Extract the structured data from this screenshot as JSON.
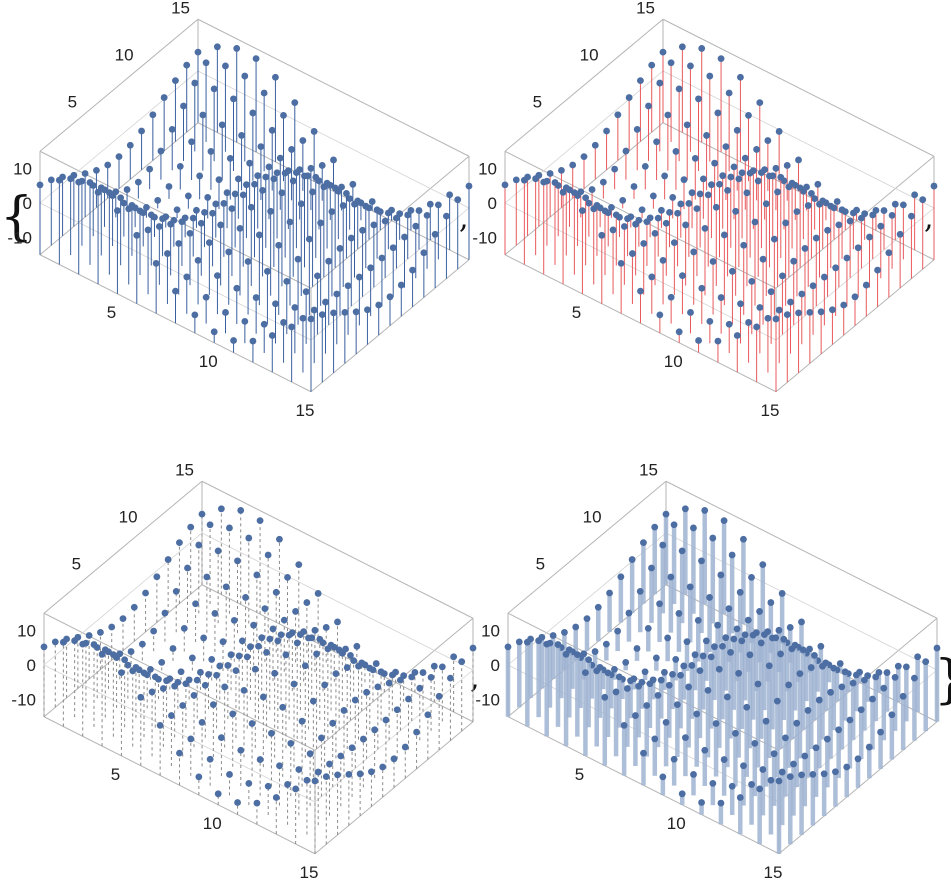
{
  "brackets": {
    "open": "{",
    "close": "}",
    "separator": ","
  },
  "chart_data": [
    {
      "type": "scatter",
      "style": "stems",
      "stem_color": "#3a5f9e",
      "point_color": "#4d6ea3",
      "x_ticks": [
        "5",
        "10",
        "15"
      ],
      "y_ticks": [
        "5",
        "10",
        "15"
      ],
      "z_ticks": [
        "10",
        "0",
        "-10"
      ],
      "xlim": [
        1,
        15
      ],
      "ylim": [
        1,
        15
      ],
      "zlim": [
        -15,
        15
      ],
      "grid": false,
      "surface": "z = 13*sin(x/2.2)*cos(y/2.5)"
    },
    {
      "type": "scatter",
      "style": "stems",
      "stem_color": "#e8585c",
      "point_color": "#4d6ea3",
      "x_ticks": [
        "5",
        "10",
        "15"
      ],
      "y_ticks": [
        "5",
        "10",
        "15"
      ],
      "z_ticks": [
        "10",
        "0",
        "-10"
      ],
      "xlim": [
        1,
        15
      ],
      "ylim": [
        1,
        15
      ],
      "zlim": [
        -15,
        15
      ],
      "grid": false,
      "surface": "z = 13*sin(x/2.2)*cos(y/2.5)"
    },
    {
      "type": "scatter",
      "style": "dashed-stems",
      "stem_color": "#8a8a8a",
      "point_color": "#4d6ea3",
      "x_ticks": [
        "5",
        "10",
        "15"
      ],
      "y_ticks": [
        "5",
        "10",
        "15"
      ],
      "z_ticks": [
        "10",
        "0",
        "-10"
      ],
      "xlim": [
        1,
        15
      ],
      "ylim": [
        1,
        15
      ],
      "zlim": [
        -15,
        15
      ],
      "grid": false,
      "surface": "z = 13*sin(x/2.2)*cos(y/2.5)"
    },
    {
      "type": "scatter",
      "style": "thick-stems",
      "stem_color": "#9fb3d1",
      "point_color": "#4d6ea3",
      "x_ticks": [
        "5",
        "10",
        "15"
      ],
      "y_ticks": [
        "5",
        "10",
        "15"
      ],
      "z_ticks": [
        "10",
        "0",
        "-10"
      ],
      "xlim": [
        1,
        15
      ],
      "ylim": [
        1,
        15
      ],
      "zlim": [
        -15,
        15
      ],
      "grid": false,
      "surface": "z = 13*sin(x/2.2)*cos(y/2.5)"
    }
  ]
}
